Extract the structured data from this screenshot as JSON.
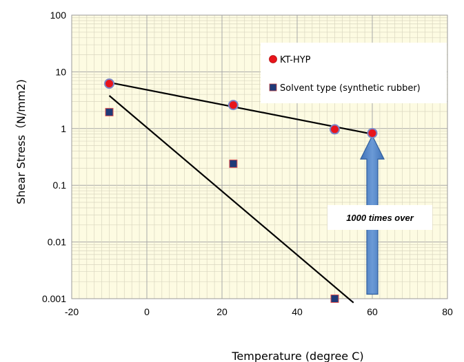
{
  "chart_data": {
    "type": "scatter",
    "xlabel": "Temperature (degree C)",
    "ylabel": "Shear Stress（N/mm2)",
    "xlim": [
      -20,
      80
    ],
    "ylim": [
      0.001,
      100
    ],
    "yscale": "log",
    "x_ticks": [
      "-20",
      "0",
      "20",
      "40",
      "60",
      "80"
    ],
    "x_tick_values": [
      -20,
      0,
      20,
      40,
      60,
      80
    ],
    "y_ticks": [
      "0.001",
      "0.01",
      "0.1",
      "1",
      "10",
      "100"
    ],
    "y_tick_values": [
      0.001,
      0.01,
      0.1,
      1,
      10,
      100
    ],
    "grid": true,
    "legend_position": "top-right",
    "series": [
      {
        "name": "KT-HYP",
        "marker": "circle",
        "color": "#e8141b",
        "edge_color": "#7b86c8",
        "points": [
          [
            -10,
            6.2
          ],
          [
            23,
            2.6
          ],
          [
            50,
            0.97
          ],
          [
            60,
            0.83
          ]
        ],
        "trendline": [
          [
            -10,
            6.5
          ],
          [
            60,
            0.8
          ]
        ]
      },
      {
        "name": "Solvent type (synthetic rubber)",
        "marker": "square",
        "color": "#1f3a78",
        "edge_color": "#e05050",
        "points": [
          [
            -10,
            1.95
          ],
          [
            23,
            0.24
          ],
          [
            50,
            0.001
          ]
        ],
        "trendline": [
          [
            -10,
            3.8
          ],
          [
            55,
            0.00085
          ]
        ]
      }
    ],
    "annotations": [
      {
        "text": "1000 times   over",
        "arrow_x": 60,
        "arrow_from": 0.0012,
        "arrow_to": 0.75,
        "arrow_color": "#4a7ec0",
        "anchor_x": 58.5,
        "anchor_y": 0.0065
      }
    ]
  }
}
